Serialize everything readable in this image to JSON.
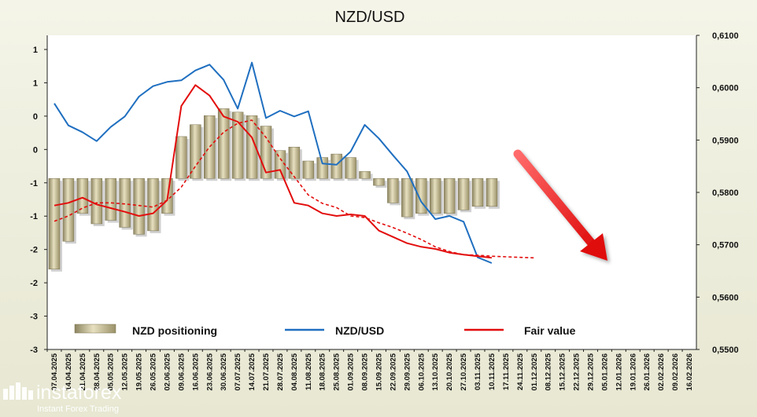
{
  "chart_data": {
    "type": "bar+line",
    "title": "NZD/USD",
    "left_axis": {
      "tick_labels": [
        "1",
        "1",
        "0",
        "0",
        "-1",
        "-1",
        "-2",
        "-2",
        "-3",
        "-3"
      ],
      "ylim": [
        -3,
        1.5
      ]
    },
    "right_axis": {
      "tick_labels": [
        "0,6100",
        "0,6000",
        "0,5900",
        "0,5800",
        "0,5700",
        "0,5600",
        "0,5500"
      ],
      "ylim": [
        0.55,
        0.61
      ]
    },
    "x_labels": [
      "07.04.2025",
      "14.04.2025",
      "21.04.2025",
      "28.04.2025",
      "05.05.2025",
      "12.05.2025",
      "19.05.2025",
      "26.05.2025",
      "02.06.2025",
      "09.06.2025",
      "16.06.2025",
      "23.06.2025",
      "30.06.2025",
      "07.07.2025",
      "14.07.2025",
      "21.07.2025",
      "28.07.2025",
      "04.08.2025",
      "11.08.2025",
      "18.08.2025",
      "25.08.2025",
      "01.09.2025",
      "08.09.2025",
      "15.09.2025",
      "22.09.2025",
      "29.09.2025",
      "06.10.2025",
      "13.10.2025",
      "20.10.2025",
      "27.10.2025",
      "03.11.2025",
      "10.11.2025",
      "17.11.2025",
      "24.11.2025",
      "01.12.2025",
      "08.12.2025",
      "15.12.2025",
      "22.12.2025",
      "29.12.2025",
      "05.01.2026",
      "12.01.2026",
      "19.01.2026",
      "26.01.2026",
      "02.02.2026",
      "09.02.2026",
      "16.02.2026"
    ],
    "series": [
      {
        "name": "NZD positioning",
        "type": "bar",
        "axis": "left",
        "color": "#b3a97c",
        "values": [
          -1.85,
          -1.45,
          -1.05,
          -1.2,
          -1.15,
          -1.25,
          -1.35,
          -1.3,
          -1.05,
          0.05,
          0.22,
          0.35,
          0.45,
          0.4,
          0.35,
          0.2,
          -0.15,
          -0.1,
          -0.3,
          -0.25,
          -0.2,
          -0.25,
          -0.45,
          -0.65,
          -0.9,
          -1.1,
          -1.05,
          -1.05,
          -1.05,
          -1.0,
          -0.95,
          -0.95
        ]
      },
      {
        "name": "NZD/USD",
        "type": "line",
        "axis": "right",
        "color": "#1f6fc0",
        "values": [
          0.597,
          0.5928,
          0.5915,
          0.5898,
          0.5925,
          0.5945,
          0.5983,
          0.6003,
          0.6011,
          0.6014,
          0.6033,
          0.6044,
          0.6015,
          0.596,
          0.6048,
          0.5942,
          0.5956,
          0.5945,
          0.5955,
          0.5855,
          0.5853,
          0.5878,
          0.5929,
          0.5903,
          0.5871,
          0.584,
          0.5782,
          0.5749,
          0.5755,
          0.5744,
          0.5676,
          0.5665
        ]
      },
      {
        "name": "Fair value",
        "type": "line",
        "axis": "right",
        "color": "#e30d0d",
        "values": [
          0.5775,
          0.578,
          0.579,
          0.5777,
          0.577,
          0.5763,
          0.5755,
          0.576,
          0.5785,
          0.5965,
          0.6005,
          0.5985,
          0.5945,
          0.5935,
          0.5905,
          0.5838,
          0.5843,
          0.578,
          0.5775,
          0.576,
          0.5755,
          0.5758,
          0.5755,
          0.5727,
          0.5715,
          0.5703,
          0.5696,
          0.5692,
          0.5685,
          0.5681,
          0.5678,
          0.5675
        ]
      },
      {
        "name": "Fair value trend",
        "type": "line",
        "style": "dashed",
        "axis": "right",
        "color": "#e30d0d",
        "values": [
          0.5745,
          0.5755,
          0.577,
          0.578,
          0.578,
          0.5778,
          0.5775,
          0.5772,
          0.5785,
          0.581,
          0.585,
          0.5887,
          0.5915,
          0.5932,
          0.5938,
          0.5905,
          0.5865,
          0.583,
          0.5795,
          0.5779,
          0.5771,
          0.5755,
          0.5752,
          0.5742,
          0.5733,
          0.5722,
          0.571,
          0.5696,
          0.5687,
          0.5681,
          0.568,
          0.5678,
          0.5677,
          0.5676,
          0.5675
        ]
      }
    ],
    "legend": {
      "placement": "bottom",
      "entries": [
        "NZD positioning",
        "NZD/USD",
        "Fair value"
      ]
    },
    "grid": false,
    "annotation": "downward red arrow"
  },
  "branding": {
    "logo_text": "instaforex",
    "tagline": "Instant Forex Trading"
  }
}
